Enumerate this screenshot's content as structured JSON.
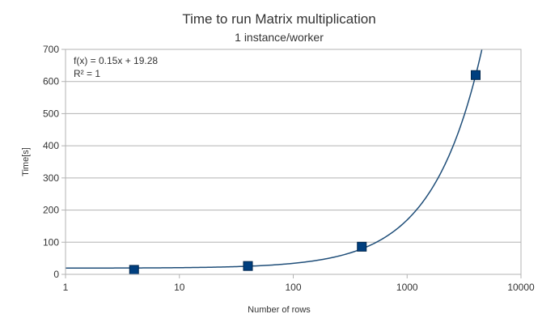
{
  "chart_data": {
    "type": "scatter",
    "title": "Time to run Matrix multiplication",
    "subtitle": "1 instance/worker",
    "xlabel": "Number of rows",
    "ylabel": "Time[s]",
    "x_scale": "log",
    "xlim": [
      1,
      10000
    ],
    "ylim": [
      0,
      700
    ],
    "x_ticks": [
      1,
      10,
      100,
      1000,
      10000
    ],
    "x_tick_labels": [
      "1",
      "10",
      "100",
      "1000",
      "10000"
    ],
    "y_ticks": [
      0,
      100,
      200,
      300,
      400,
      500,
      600,
      700
    ],
    "y_tick_labels": [
      "0",
      "100",
      "200",
      "300",
      "400",
      "500",
      "600",
      "700"
    ],
    "grid": "horizontal",
    "series": [
      {
        "x": [
          4,
          40,
          400,
          4000
        ],
        "y": [
          14,
          26,
          86,
          620
        ],
        "marker": "square",
        "color": "#003f7f"
      }
    ],
    "trendline": {
      "slope": 0.15,
      "intercept": 19.28,
      "color": "#1f4e79"
    },
    "annotations": [
      "f(x) = 0.15x + 19.28",
      "R² = 1"
    ]
  }
}
